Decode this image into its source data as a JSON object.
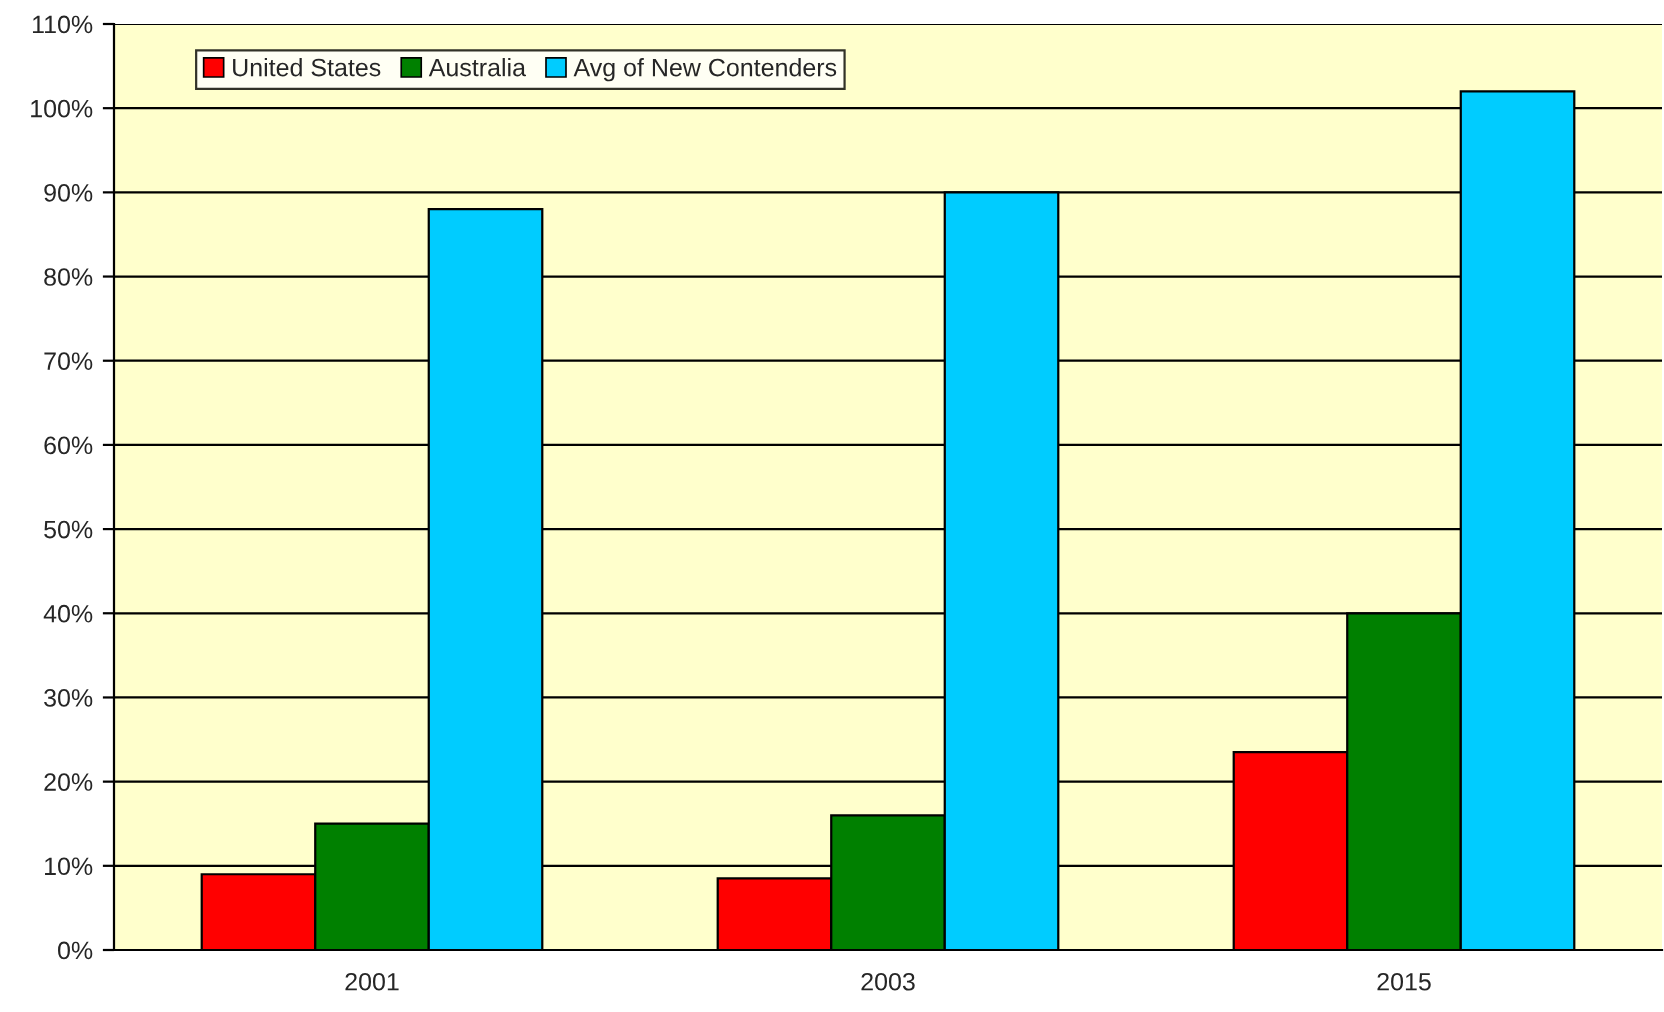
{
  "chart_data": {
    "type": "bar",
    "categories": [
      "2001",
      "2003",
      "2015"
    ],
    "series": [
      {
        "name": "United States",
        "color": "#ff0000",
        "values": [
          9,
          8.5,
          23.5
        ]
      },
      {
        "name": "Australia",
        "color": "#008000",
        "values": [
          15,
          16,
          40
        ]
      },
      {
        "name": "Avg of New Contenders",
        "color": "#00ccff",
        "values": [
          88,
          90,
          102
        ]
      }
    ],
    "ylim": [
      0,
      110
    ],
    "yticks": [
      {
        "value": 0,
        "label": "0%"
      },
      {
        "value": 10,
        "label": "10%"
      },
      {
        "value": 20,
        "label": "20%"
      },
      {
        "value": 30,
        "label": "30%"
      },
      {
        "value": 40,
        "label": "40%"
      },
      {
        "value": 50,
        "label": "50%"
      },
      {
        "value": 60,
        "label": "60%"
      },
      {
        "value": 70,
        "label": "70%"
      },
      {
        "value": 80,
        "label": "80%"
      },
      {
        "value": 90,
        "label": "90%"
      },
      {
        "value": 100,
        "label": "100%"
      },
      {
        "value": 110,
        "label": "110%"
      }
    ],
    "grid": "y",
    "legend": "top left"
  }
}
